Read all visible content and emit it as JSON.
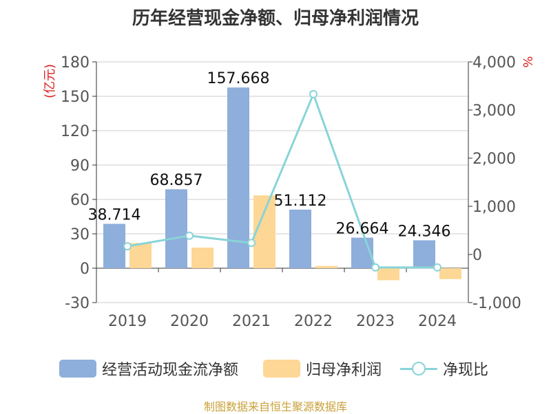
{
  "title": "历年经营现金净额、归母净利润情况",
  "source": "制图数据来自恒生聚源数据库",
  "chart_data": {
    "type": "bar",
    "categories": [
      "2019",
      "2020",
      "2021",
      "2022",
      "2023",
      "2024"
    ],
    "series": [
      {
        "name": "经营活动现金流净额",
        "type": "bar",
        "axis": "left",
        "color": "#8eaedb",
        "values": [
          38.714,
          68.857,
          157.668,
          51.112,
          26.664,
          24.346
        ]
      },
      {
        "name": "归母净利润",
        "type": "bar",
        "axis": "left",
        "color": "#fdd795",
        "values": [
          22,
          18,
          63.5,
          2,
          -10.5,
          -9.5
        ]
      },
      {
        "name": "净现比",
        "type": "line",
        "axis": "right",
        "color": "#88d4d8",
        "values": [
          170,
          390,
          240,
          3330,
          -270,
          -270
        ]
      }
    ],
    "data_labels": [
      "38.714",
      "68.857",
      "157.668",
      "51.112",
      "26.664",
      "24.346"
    ],
    "y_left": {
      "label": "(亿元)",
      "min": -30,
      "max": 180,
      "ticks": [
        -30,
        0,
        30,
        60,
        90,
        120,
        150,
        180
      ]
    },
    "y_right": {
      "label": "%",
      "min": -1000,
      "max": 4000,
      "ticks": [
        -1000,
        0,
        1000,
        2000,
        3000,
        4000
      ],
      "tick_labels": [
        "-1,000",
        "0",
        "1,000",
        "2,000",
        "3,000",
        "4,000"
      ]
    },
    "grid": true,
    "legend_position": "bottom"
  }
}
